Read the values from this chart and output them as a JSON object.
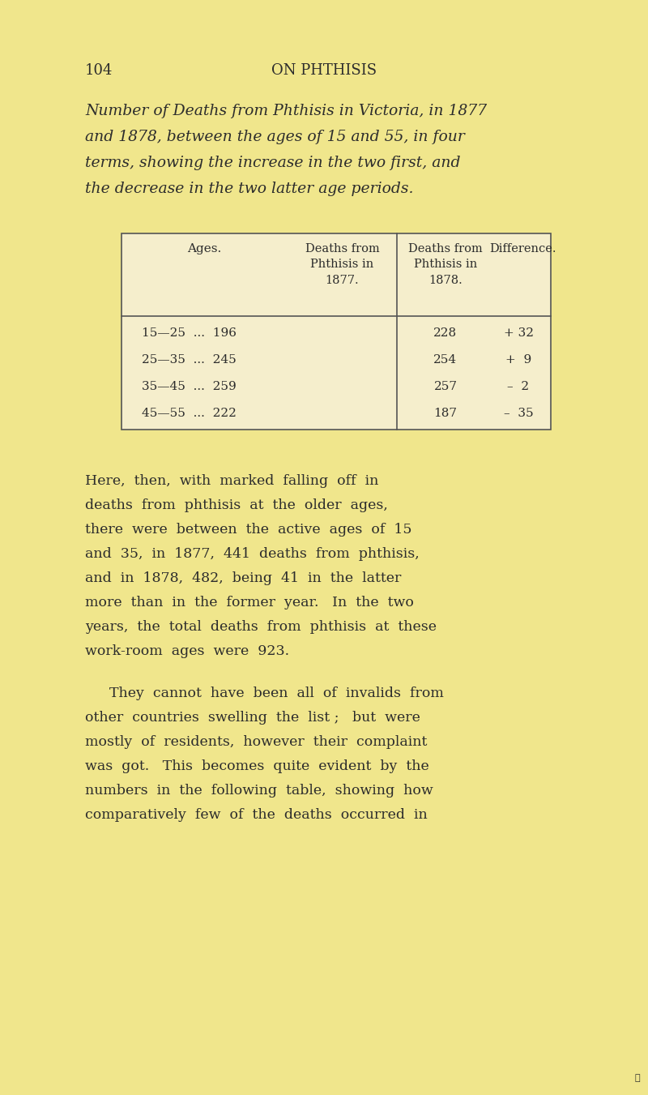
{
  "bg_color": "#f0e68c",
  "page_number": "104",
  "page_header": "ON PHTHISIS",
  "title_lines": [
    "Number of Deaths from Phthisis in Victoria, in 1877",
    "and 1878, between the ages of 15 and 55, in four",
    "terms, showing the increase in the two first, and",
    "the decrease in the two latter age periods."
  ],
  "table": {
    "col_headers": [
      "Ages.",
      "Deaths from\nPhthisis in\n1877.",
      "Deaths from\nPhthisis in\n1878.",
      "Difference."
    ],
    "rows": [
      [
        "15—25  ...  196",
        "228",
        "+ 32"
      ],
      [
        "25—35  ...  245",
        "254",
        "+  9"
      ],
      [
        "35—45  ...  259",
        "257",
        "–  2"
      ],
      [
        "45—55  ...  222",
        "187",
        "–  35"
      ]
    ]
  },
  "body_paragraphs": [
    "Here,  then,  with  marked  falling  off  in deaths  from  phthisis  at  the  older  ages, there  were  between  the  active  ages  of  15 and  35,  in  1877,  441  deaths  from  phthisis, and  in  1878,  482,  being  41  in  the  latter more  than  in  the  former  year.   In  the  two years,  the  total  deaths  from  phthisis  at  these work-room  ages  were  923.",
    "They  cannot  have  been  all  of  invalids  from other  countries  swelling  the  list ;   but  were mostly  of  residents,  however  their  complaint was  got.   This  becomes  quite  evident  by  the numbers  in  the  following  table,  showing  how comparatively  few  of  the  deaths  occurred  in"
  ],
  "text_color": "#2c2c2c",
  "table_bg": "#f5eecc",
  "table_border": "#555555"
}
